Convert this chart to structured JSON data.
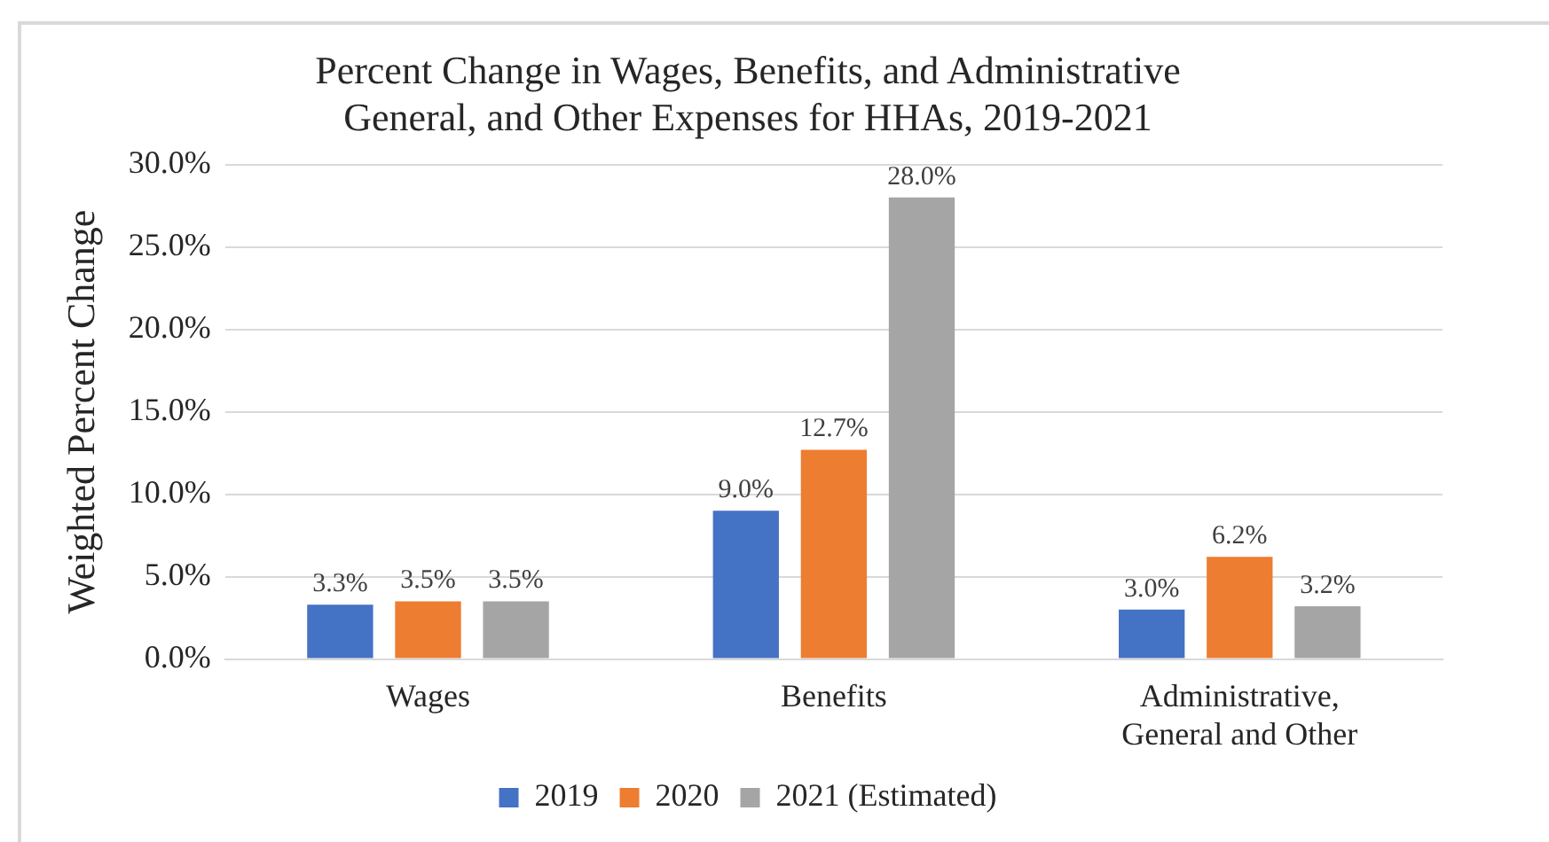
{
  "chart_data": {
    "type": "bar",
    "title": "Percent Change in Wages, Benefits, and Administrative\nGeneral, and Other Expenses for HHAs, 2019-2021",
    "ylabel": "Weighted Percent Change",
    "categories": [
      "Wages",
      "Benefits",
      "Administrative,\nGeneral and Other"
    ],
    "series": [
      {
        "name": "2019",
        "color": "#4472c4",
        "values": [
          3.3,
          9.0,
          3.0
        ],
        "value_labels": [
          "3.3%",
          "9.0%",
          "3.0%"
        ]
      },
      {
        "name": "2020",
        "color": "#ed7d31",
        "values": [
          3.5,
          12.7,
          6.2
        ],
        "value_labels": [
          "3.5%",
          "12.7%",
          "6.2%"
        ]
      },
      {
        "name": "2021 (Estimated)",
        "color": "#a5a5a5",
        "values": [
          3.5,
          28.0,
          3.2
        ],
        "value_labels": [
          "3.5%",
          "28.0%",
          "3.2%"
        ]
      }
    ],
    "ylim": [
      0,
      30
    ],
    "yticks": [
      {
        "value": 0,
        "label": "0.0%"
      },
      {
        "value": 5,
        "label": "5.0%"
      },
      {
        "value": 10,
        "label": "10.0%"
      },
      {
        "value": 15,
        "label": "15.0%"
      },
      {
        "value": 20,
        "label": "20.0%"
      },
      {
        "value": 25,
        "label": "25.0%"
      },
      {
        "value": 30,
        "label": "30.0%"
      }
    ],
    "grid": "y",
    "legend": "bottom"
  }
}
